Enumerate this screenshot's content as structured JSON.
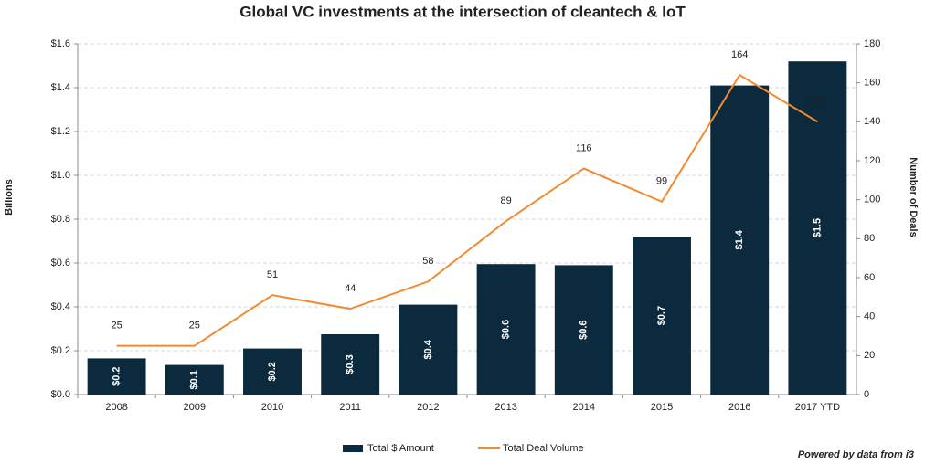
{
  "chart_data": {
    "type": "bar",
    "title": "Global VC investments at the intersection of cleantech & IoT",
    "categories": [
      "2008",
      "2009",
      "2010",
      "2011",
      "2012",
      "2013",
      "2014",
      "2015",
      "2016",
      "2017 YTD"
    ],
    "series": [
      {
        "name": "Total $ Amount",
        "type": "bar",
        "axis": "y",
        "color": "#0b2a3d",
        "values": [
          0.165,
          0.135,
          0.21,
          0.275,
          0.41,
          0.595,
          0.59,
          0.72,
          1.41,
          1.52
        ],
        "value_labels": [
          "$0.2",
          "$0.1",
          "$0.2",
          "$0.3",
          "$0.4",
          "$0.6",
          "$0.6",
          "$0.7",
          "$1.4",
          "$1.5"
        ]
      },
      {
        "name": "Total Deal Volume",
        "type": "line",
        "axis": "y2",
        "color": "#f28a2e",
        "values": [
          25,
          25,
          51,
          44,
          58,
          89,
          116,
          99,
          164,
          140
        ]
      }
    ],
    "ylabel": "Billions",
    "y2label": "Number of Deals",
    "ylim": [
      0,
      1.6
    ],
    "yticks": [
      {
        "value": 0,
        "label": "$0.0"
      },
      {
        "value": 0.2,
        "label": "$0.2"
      },
      {
        "value": 0.4,
        "label": "$0.4"
      },
      {
        "value": 0.6,
        "label": "$0.6"
      },
      {
        "value": 0.8,
        "label": "$0.8"
      },
      {
        "value": 1.0,
        "label": "$1.0"
      },
      {
        "value": 1.2,
        "label": "$1.2"
      },
      {
        "value": 1.4,
        "label": "$1.4"
      },
      {
        "value": 1.6,
        "label": "$1.6"
      }
    ],
    "y2lim": [
      0,
      180
    ],
    "y2ticks": [
      0,
      20,
      40,
      60,
      80,
      100,
      120,
      140,
      160,
      180
    ],
    "grid": true,
    "legend": "bottom",
    "footnote": "Powered by data from i3"
  }
}
